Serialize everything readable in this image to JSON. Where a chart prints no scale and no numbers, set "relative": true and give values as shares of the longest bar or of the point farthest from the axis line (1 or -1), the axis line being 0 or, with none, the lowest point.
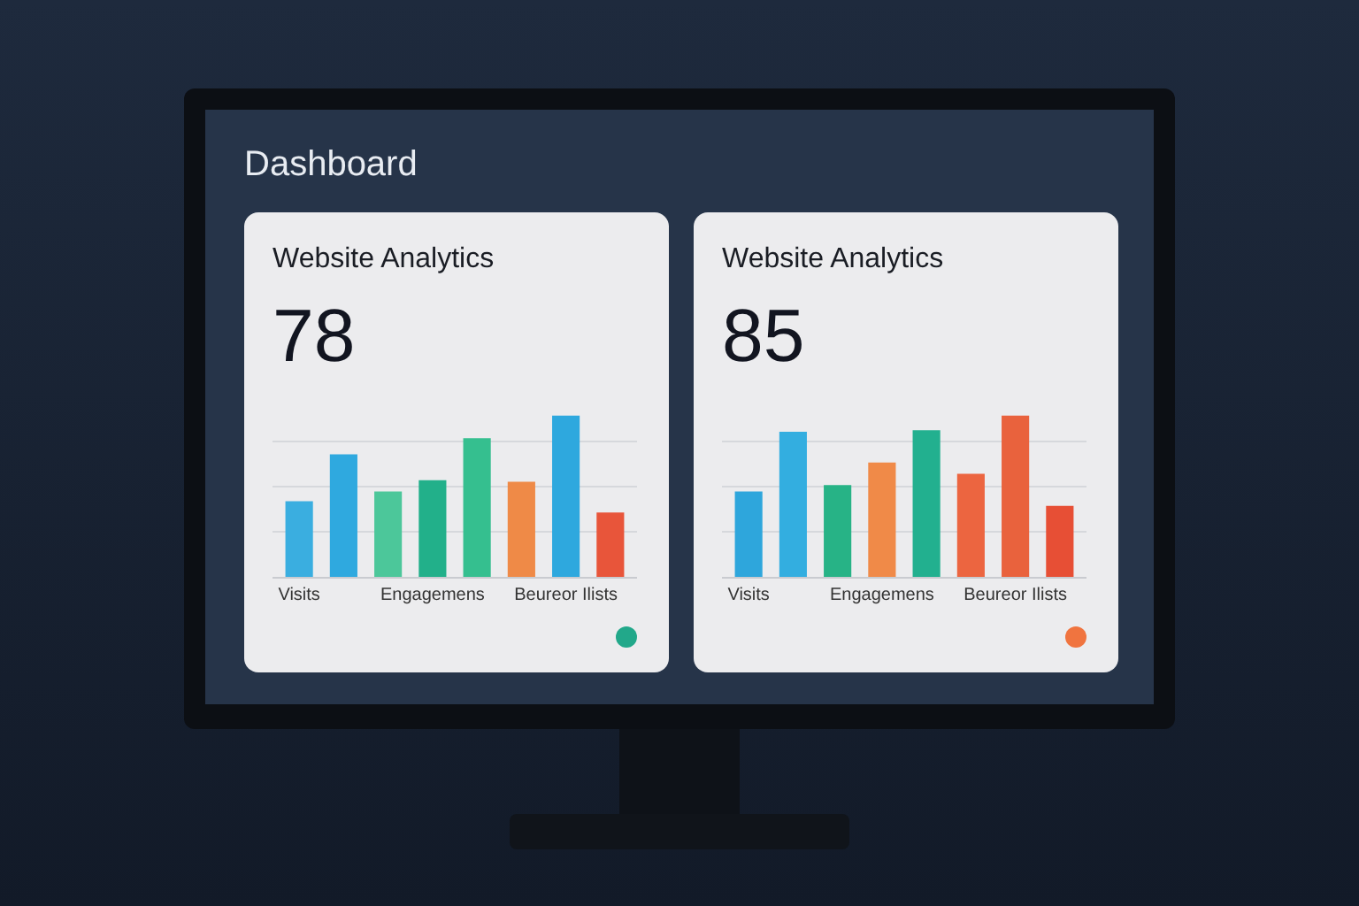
{
  "chart_data": [
    {
      "type": "bar",
      "title": "Website Analytics",
      "subtitle": "78",
      "annotations": [
        "Dashboard"
      ],
      "relative": true,
      "grid": true,
      "categories": [
        "Visits",
        null,
        null,
        "Engagemens",
        null,
        null,
        "Beureor Ilists",
        null
      ],
      "values": [
        0.47,
        0.76,
        0.53,
        0.6,
        0.86,
        0.59,
        1,
        0.4
      ],
      "colors": [
        "#3aaee0",
        "#2fa9df",
        "#4cc79a",
        "#22b08a",
        "#35bf8f",
        "#ef8a47",
        "#2ea8de",
        "#e8553a"
      ]
    },
    {
      "type": "bar",
      "title": "Website Analytics",
      "subtitle": "85",
      "relative": true,
      "grid": true,
      "categories": [
        "Visits",
        null,
        null,
        "Engagemens",
        null,
        null,
        "Beureor Ilists",
        null
      ],
      "values": [
        0.53,
        0.9,
        0.57,
        0.71,
        0.91,
        0.64,
        1,
        0.44
      ],
      "colors": [
        "#2ea6dc",
        "#33aee0",
        "#27b386",
        "#f08a48",
        "#22b08f",
        "#ec6540",
        "#e9623d",
        "#e74f35"
      ]
    }
  ]
}
